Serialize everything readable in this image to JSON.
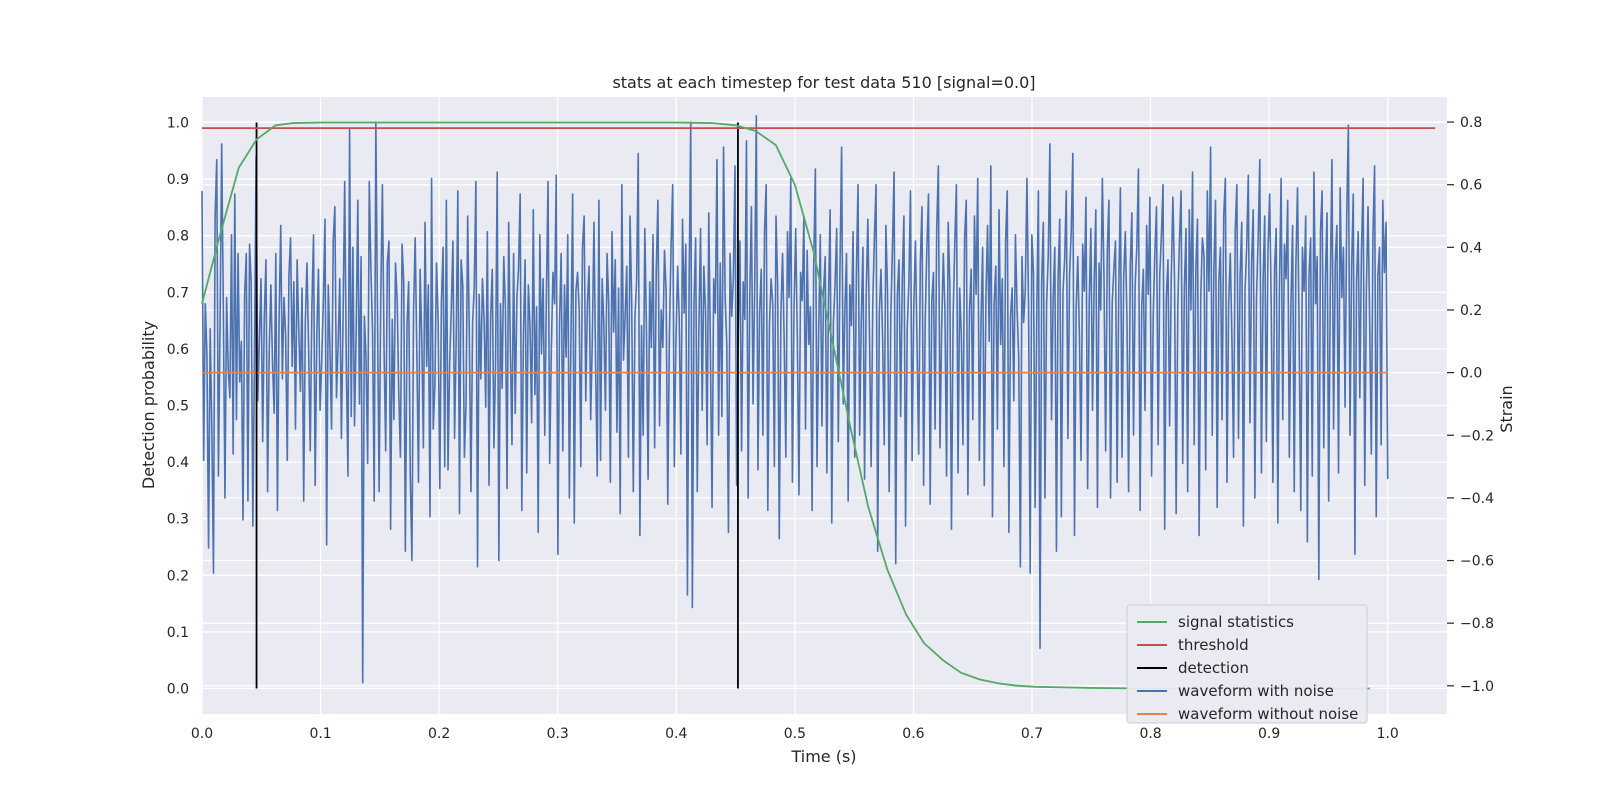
{
  "chart_data": {
    "type": "line",
    "title": "stats at each timestep for test data 510 [signal=0.0]",
    "xlabel": "Time (s)",
    "ylabel_left": "Detection probability",
    "ylabel_right": "Strain",
    "xlim": [
      0.0,
      1.05
    ],
    "ylim_left": [
      -0.045,
      1.045
    ],
    "ylim_right": [
      -1.09,
      0.88
    ],
    "x_ticks": [
      "0.0",
      "0.1",
      "0.2",
      "0.3",
      "0.4",
      "0.5",
      "0.6",
      "0.7",
      "0.8",
      "0.9",
      "1.0"
    ],
    "y_ticks_left": [
      "0.0",
      "0.1",
      "0.2",
      "0.3",
      "0.4",
      "0.5",
      "0.6",
      "0.7",
      "0.8",
      "0.9",
      "1.0"
    ],
    "y_ticks_right": [
      "−1.0",
      "−0.8",
      "−0.6",
      "−0.4",
      "−0.2",
      "0.0",
      "0.2",
      "0.4",
      "0.6",
      "0.8"
    ],
    "grid": true,
    "legend_position": "bottom-right",
    "series": [
      {
        "name": "signal statistics",
        "axis": "left",
        "color": "#55a868",
        "x": [
          0.0,
          0.015,
          0.031,
          0.046,
          0.062,
          0.077,
          0.1,
          0.2,
          0.3,
          0.4,
          0.43,
          0.45,
          0.467,
          0.484,
          0.5,
          0.516,
          0.531,
          0.547,
          0.562,
          0.578,
          0.594,
          0.609,
          0.625,
          0.64,
          0.656,
          0.672,
          0.687,
          0.703,
          0.75,
          0.8,
          0.9,
          0.985
        ],
        "y": [
          0.68,
          0.8,
          0.92,
          0.97,
          0.995,
          0.999,
          1.0,
          1.0,
          1.0,
          1.0,
          0.999,
          0.995,
          0.985,
          0.96,
          0.89,
          0.77,
          0.62,
          0.46,
          0.32,
          0.21,
          0.13,
          0.08,
          0.05,
          0.028,
          0.016,
          0.009,
          0.005,
          0.003,
          0.001,
          0.0,
          0.0,
          0.0
        ]
      },
      {
        "name": "threshold",
        "axis": "left",
        "color": "#c44e52",
        "x": [
          0.0,
          1.04
        ],
        "y": [
          0.99,
          0.99
        ]
      },
      {
        "name": "detection",
        "axis": "left",
        "color": "#000000",
        "x": [
          0.046,
          0.452
        ],
        "y_from": 0.0,
        "y_to": 1.0
      },
      {
        "name": "waveform with noise",
        "axis": "right",
        "color": "#4c72b0",
        "x_start": 0.0,
        "x_end": 1.0,
        "values": [
          0.58,
          -0.28,
          0.22,
          0.06,
          -0.56,
          0.14,
          -0.18,
          -0.64,
          0.5,
          0.68,
          -0.33,
          0.15,
          0.73,
          0.21,
          -0.4,
          0.24,
          0.01,
          -0.08,
          0.44,
          -0.26,
          0.57,
          -0.15,
          0.38,
          -0.03,
          0.1,
          -0.47,
          0.25,
          0.38,
          -0.41,
          0.41,
          0.29,
          -0.49,
          0.05,
          0.69,
          -0.09,
          0.11,
          0.3,
          -0.22,
          0.18,
          0.36,
          -0.38,
          0.07,
          0.28,
          0.03,
          -0.13,
          0.38,
          -0.44,
          0.17,
          0.47,
          -0.02,
          0.24,
          0.12,
          -0.28,
          0.31,
          0.43,
          0.02,
          0.29,
          -0.18,
          0.36,
          0.14,
          -0.06,
          0.27,
          -0.41,
          0.16,
          0.35,
          0.08,
          -0.25,
          0.21,
          0.44,
          -0.36,
          0.12,
          0.33,
          -0.12,
          0.04,
          0.23,
          0.49,
          -0.55,
          0.28,
          0.08,
          -0.18,
          0.42,
          0.53,
          -0.08,
          0.09,
          0.3,
          -0.21,
          0.17,
          0.61,
          0.02,
          -0.33,
          0.78,
          -0.14,
          0.4,
          -0.17,
          0.13,
          0.55,
          -0.1,
          0.37,
          -0.99,
          0.18,
          0.05,
          -0.29,
          0.61,
          0.33,
          0.13,
          -0.41,
          0.8,
          0.19,
          -0.38,
          0.24,
          0.6,
          0.08,
          -0.25,
          0.35,
          0.42,
          -0.5,
          0.17,
          -0.15,
          0.35,
          0.23,
          -0.07,
          -0.27,
          0.41,
          0.29,
          -0.57,
          0.15,
          0.29,
          -0.33,
          -0.6,
          0.2,
          0.43,
          0.06,
          -0.35,
          0.33,
          0.11,
          -0.24,
          0.48,
          0.02,
          0.28,
          -0.46,
          0.62,
          -0.18,
          -0.04,
          0.35,
          0.17,
          -0.37,
          0.23,
          0.4,
          -0.3,
          0.55,
          -0.31,
          0.03,
          0.2,
          0.42,
          -0.21,
          0.11,
          0.58,
          -0.45,
          0.36,
          0.28,
          -0.27,
          -0.1,
          0.5,
          0.12,
          -0.38,
          0.16,
          0.27,
          0.61,
          -0.62,
          0.25,
          -0.02,
          0.3,
          0.17,
          -0.11,
          0.45,
          -0.36,
          0.18,
          0.33,
          -0.24,
          0.03,
          0.64,
          -0.6,
          0.22,
          -0.05,
          0.37,
          0.21,
          -0.37,
          0.48,
          0.09,
          -0.23,
          0.38,
          -0.13,
          0.24,
          0.33,
          0.57,
          -0.44,
          0.12,
          0.36,
          -0.32,
          0.28,
          0.15,
          -0.16,
          0.52,
          -0.07,
          0.21,
          -0.51,
          0.44,
          0.06,
          0.3,
          -0.2,
          0.25,
          0.61,
          -0.29,
          0.07,
          0.32,
          0.22,
          0.63,
          -0.58,
          0.16,
          0.38,
          -0.25,
          0.28,
          0.05,
          0.44,
          -0.4,
          0.13,
          0.57,
          -0.48,
          0.26,
          0.32,
          0.2,
          -0.3,
          0.4,
          0.5,
          -0.09,
          0.22,
          0.34,
          -0.15,
          0.11,
          0.48,
          0.03,
          -0.33,
          0.55,
          -0.28,
          0.3,
          0.16,
          -0.12,
          0.38,
          0.22,
          -0.35,
          0.45,
          0.13,
          0.36,
          -0.19,
          0.27,
          -0.45,
          0.6,
          0.04,
          0.18,
          0.34,
          -0.27,
          0.5,
          0.23,
          -0.38,
          0.18,
          0.29,
          0.7,
          -0.52,
          0.15,
          -0.2,
          0.46,
          0.14,
          -0.34,
          0.29,
          0.08,
          0.44,
          -0.24,
          0.33,
          0.55,
          -0.17,
          0.2,
          0.08,
          0.39,
          0.26,
          -0.42,
          0.12,
          0.4,
          0.6,
          -0.3,
          0.1,
          0.34,
          0.17,
          -0.26,
          0.49,
          0.19,
          0.41,
          -0.71,
          0.27,
          0.8,
          -0.75,
          0.22,
          0.43,
          -0.38,
          0.16,
          0.46,
          -0.12,
          0.34,
          0.2,
          -0.23,
          0.51,
          0.08,
          -0.43,
          0.3,
          0.19,
          0.68,
          -0.2,
          0.35,
          -0.14,
          0.72,
          0.24,
          0.09,
          -0.51,
          0.38,
          0.18,
          0.3,
          0.66,
          -0.36,
          0.12,
          0.42,
          -0.25,
          0.29,
          0.17,
          0.74,
          -0.4,
          0.24,
          0.53,
          -0.1,
          0.27,
          0.82,
          -0.31,
          0.19,
          0.33,
          -0.2,
          0.45,
          0.6,
          -0.44,
          0.15,
          0.3,
          0.22,
          -0.3,
          0.5,
          0.28,
          -0.53,
          0.19,
          0.38,
          0.1,
          -0.27,
          0.45,
          0.24,
          0.62,
          -0.35,
          0.2,
          0.46,
          0.11,
          -0.39,
          0.32,
          0.23,
          0.5,
          -0.18,
          0.39,
          0.09,
          0.21,
          -0.44,
          0.34,
          0.65,
          -0.3,
          0.13,
          0.44,
          -0.17,
          0.26,
          0.37,
          -0.32,
          0.23,
          0.52,
          -0.48,
          0.16,
          0.28,
          0.46,
          -0.22,
          0.33,
          0.72,
          -0.1,
          0.2,
          0.38,
          -0.41,
          0.28,
          0.15,
          0.45,
          -0.27,
          0.31,
          0.6,
          -0.2,
          0.17,
          0.4,
          -0.34,
          0.25,
          0.49,
          0.12,
          -0.3,
          0.22,
          0.43,
          0.6,
          -0.57,
          0.19,
          0.33,
          0.11,
          -0.23,
          0.47,
          0.26,
          -0.38,
          0.18,
          0.4,
          0.64,
          -0.61,
          0.25,
          0.36,
          -0.14,
          0.3,
          0.5,
          -0.49,
          0.14,
          0.28,
          0.58,
          -0.28,
          0.21,
          0.42,
          0.09,
          -0.26,
          0.35,
          0.53,
          -0.36,
          0.17,
          0.4,
          0.57,
          -0.42,
          0.23,
          0.32,
          -0.18,
          0.46,
          0.66,
          -0.24,
          0.14,
          0.38,
          0.2,
          -0.33,
          0.48,
          0.28,
          -0.5,
          0.18,
          0.41,
          0.6,
          -0.32,
          0.27,
          0.12,
          -0.23,
          0.43,
          0.55,
          -0.39,
          0.2,
          0.33,
          -0.15,
          0.5,
          0.25,
          0.62,
          -0.28,
          0.16,
          0.4,
          -0.36,
          0.24,
          0.47,
          0.1,
          0.66,
          -0.46,
          0.22,
          0.34,
          -0.18,
          0.52,
          0.09,
          0.3,
          -0.3,
          0.42,
          0.58,
          -0.51,
          0.18,
          0.27,
          -0.09,
          0.44,
          0.2,
          0.05,
          -0.62,
          0.37,
          0.16,
          0.26,
          0.62,
          0.21,
          -0.64,
          0.44,
          0.32,
          -0.43,
          0.19,
          0.58,
          -0.88,
          0.29,
          0.48,
          -0.4,
          0.22,
          0.37,
          0.73,
          -0.15,
          0.24,
          0.4,
          -0.57,
          0.3,
          0.49,
          -0.46,
          0.26,
          0.36,
          0.58,
          -0.21,
          0.31,
          0.45,
          0.7,
          -0.52,
          0.2,
          0.37,
          0.12,
          -0.28,
          0.41,
          0.26,
          0.56,
          -0.37,
          0.23,
          0.46,
          -0.12,
          0.29,
          0.52,
          -0.43,
          0.35,
          0.2,
          0.62,
          0.3,
          -0.25,
          0.39,
          0.55,
          -0.4,
          0.22,
          0.33,
          0.42,
          -0.35,
          0.26,
          0.59,
          -0.27,
          0.3,
          0.45,
          0.17,
          -0.38,
          0.34,
          0.51,
          -0.2,
          0.28,
          0.4,
          0.65,
          -0.44,
          0.21,
          0.33,
          -0.12,
          0.47,
          0.25,
          0.56,
          -0.33,
          0.18,
          0.38,
          0.53,
          -0.23,
          0.31,
          0.44,
          0.6,
          -0.5,
          0.24,
          0.36,
          -0.17,
          0.3,
          0.56,
          0.3,
          -0.45,
          0.21,
          0.42,
          0.58,
          -0.29,
          0.27,
          0.46,
          -0.38,
          0.52,
          0.2,
          0.64,
          -0.23,
          0.33,
          0.49,
          -0.52,
          0.24,
          0.43,
          0.37,
          -0.31,
          0.58,
          0.26,
          0.72,
          -0.2,
          0.33,
          0.55,
          -0.43,
          0.29,
          0.4,
          -0.15,
          0.5,
          0.62,
          -0.35,
          0.22,
          0.38,
          0.11,
          -0.27,
          0.45,
          0.6,
          -0.21,
          0.31,
          0.48,
          -0.49,
          0.26,
          0.4,
          0.63,
          -0.16,
          0.35,
          0.52,
          -0.4,
          0.24,
          0.43,
          0.68,
          -0.32,
          0.29,
          0.5,
          -0.22,
          0.39,
          0.57,
          0.2,
          -0.35,
          0.33,
          0.46,
          -0.48,
          0.27,
          0.62,
          -0.15,
          0.41,
          0.3,
          0.55,
          -0.27,
          0.22,
          0.47,
          -0.38,
          0.34,
          0.59,
          0.12,
          -0.44,
          0.4,
          0.26,
          0.5,
          -0.54,
          0.31,
          0.43,
          -0.33,
          0.64,
          0.22,
          0.37,
          -0.66,
          0.45,
          0.58,
          -0.24,
          0.3,
          0.51,
          -0.41,
          0.28,
          0.68,
          -0.18,
          0.35,
          0.47,
          -0.32,
          0.59,
          0.24,
          0.4,
          -0.11,
          0.5,
          0.79,
          -0.2,
          0.34,
          0.57,
          -0.58,
          0.29,
          0.45,
          -0.08,
          0.39,
          0.62,
          -0.36,
          0.27,
          0.53,
          0.16,
          -0.26,
          0.44,
          0.66,
          -0.46,
          0.31,
          0.4,
          -0.23,
          0.55,
          0.32,
          0.48,
          -0.34
        ],
        "values_note": "blue strain samples, right axis"
      },
      {
        "name": "waveform without noise",
        "axis": "right",
        "color": "#dd8452",
        "x": [
          0.0,
          1.0
        ],
        "y": [
          0.0,
          0.0
        ]
      }
    ]
  }
}
